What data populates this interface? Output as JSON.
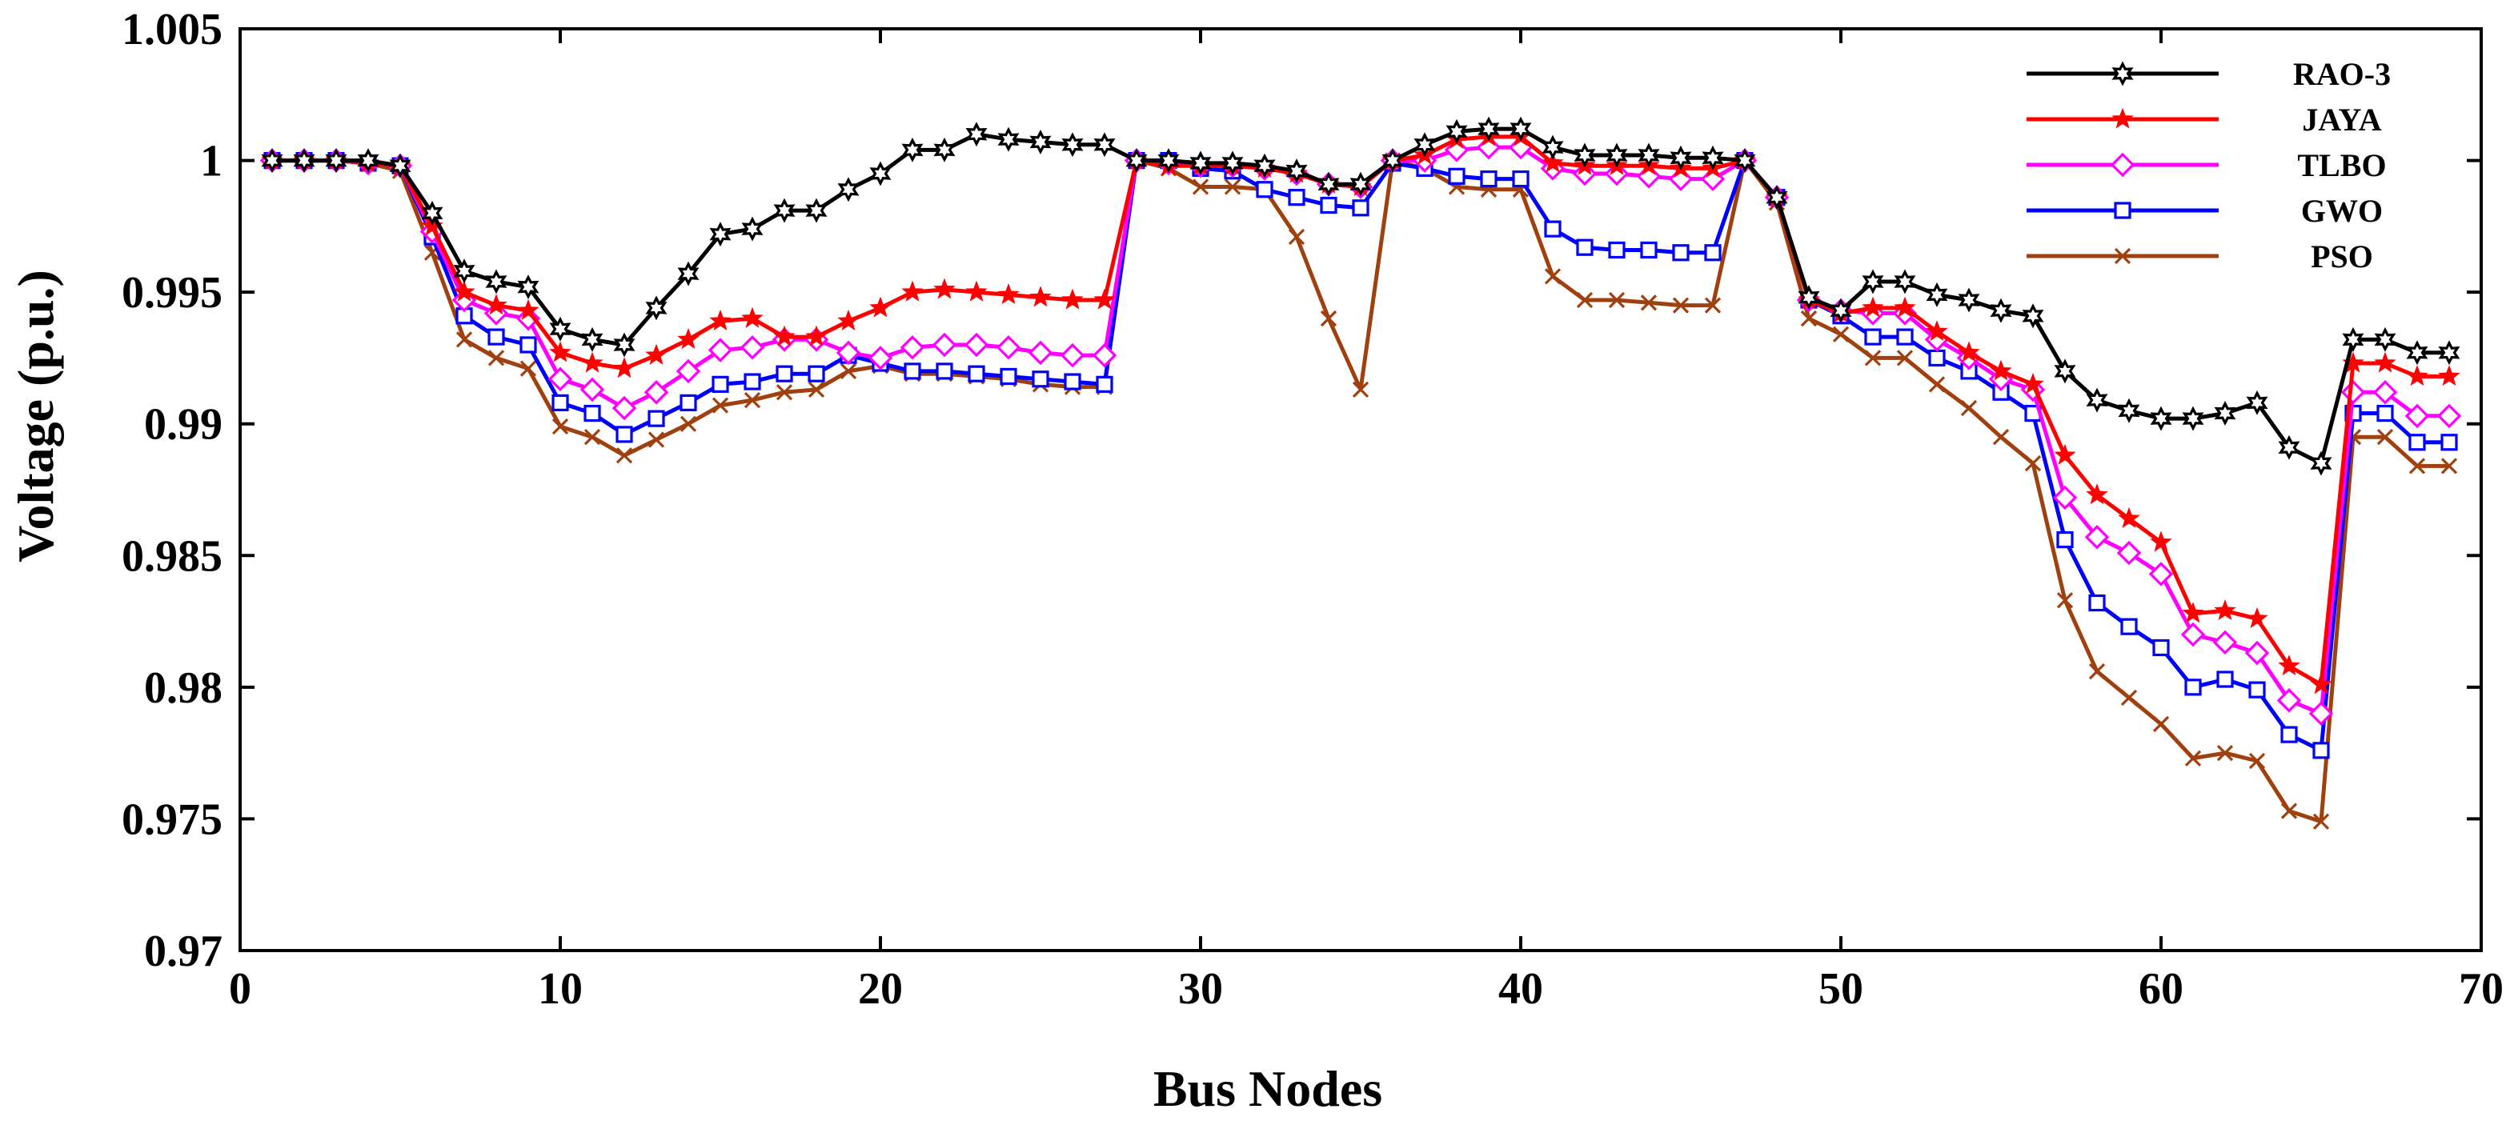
{
  "chart_data": {
    "type": "line",
    "title": "",
    "xlabel": "Bus Nodes",
    "ylabel": "Voltage (p.u.)",
    "xlim": [
      0,
      70
    ],
    "ylim": [
      0.97,
      1.005
    ],
    "xticks": [
      0,
      10,
      20,
      30,
      40,
      50,
      60,
      70
    ],
    "xtick_labels": [
      "0",
      "10",
      "20",
      "30",
      "40",
      "50",
      "60",
      "70"
    ],
    "yticks": [
      0.97,
      0.975,
      0.98,
      0.985,
      0.99,
      0.995,
      1,
      1.005
    ],
    "ytick_labels": [
      "0.97",
      "0.975",
      "0.98",
      "0.985",
      "0.99",
      "0.995",
      "1",
      "1.005"
    ],
    "grid": false,
    "legend_position": "top-right",
    "x": [
      1,
      2,
      3,
      4,
      5,
      6,
      7,
      8,
      9,
      10,
      11,
      12,
      13,
      14,
      15,
      16,
      17,
      18,
      19,
      20,
      21,
      22,
      23,
      24,
      25,
      26,
      27,
      28,
      29,
      30,
      31,
      32,
      33,
      34,
      35,
      36,
      37,
      38,
      39,
      40,
      41,
      42,
      43,
      44,
      45,
      46,
      47,
      48,
      49,
      50,
      51,
      52,
      53,
      54,
      55,
      56,
      57,
      58,
      59,
      60,
      61,
      62,
      63,
      64,
      65,
      66,
      67,
      68,
      69
    ],
    "series": [
      {
        "name": "RAO-3",
        "color": "#000000",
        "marker": "hexagram",
        "values": [
          1,
          1,
          1,
          1,
          0.9998,
          0.998,
          0.9958,
          0.9954,
          0.9952,
          0.9936,
          0.9932,
          0.993,
          0.9944,
          0.9957,
          0.9972,
          0.9974,
          0.9981,
          0.9981,
          0.9989,
          0.9995,
          1.0004,
          1.0004,
          1.001,
          1.0008,
          1.0007,
          1.0006,
          1.0006,
          1,
          1,
          0.9999,
          0.9999,
          0.9998,
          0.9996,
          0.9991,
          0.9991,
          1,
          1.0006,
          1.0011,
          1.0012,
          1.0012,
          1.0005,
          1.0002,
          1.0002,
          1.0002,
          1.0001,
          1.0001,
          1,
          0.9986,
          0.9948,
          0.9943,
          0.9954,
          0.9954,
          0.9949,
          0.9947,
          0.9943,
          0.9941,
          0.992,
          0.9909,
          0.9905,
          0.9902,
          0.9902,
          0.9904,
          0.9908,
          0.9891,
          0.9885,
          0.9932,
          0.9932,
          0.9927,
          0.9927
        ]
      },
      {
        "name": "JAYA",
        "color": "#ff0000",
        "marker": "star",
        "values": [
          1,
          1,
          1,
          0.9999,
          0.9998,
          0.9975,
          0.995,
          0.9945,
          0.9943,
          0.9927,
          0.9923,
          0.9921,
          0.9926,
          0.9932,
          0.9939,
          0.994,
          0.9933,
          0.9933,
          0.9939,
          0.9944,
          0.995,
          0.9951,
          0.995,
          0.9949,
          0.9948,
          0.9947,
          0.9947,
          1,
          0.9998,
          0.9998,
          0.9998,
          0.9997,
          0.9995,
          0.9991,
          0.999,
          1,
          1.0002,
          1.0008,
          1.0009,
          1.0009,
          0.9999,
          0.9998,
          0.9998,
          0.9998,
          0.9997,
          0.9997,
          1,
          0.9986,
          0.9947,
          0.9942,
          0.9944,
          0.9944,
          0.9935,
          0.9927,
          0.992,
          0.9915,
          0.9888,
          0.9873,
          0.9864,
          0.9855,
          0.9828,
          0.9829,
          0.9826,
          0.9808,
          0.9801,
          0.9923,
          0.9923,
          0.9918,
          0.9918
        ]
      },
      {
        "name": "TLBO",
        "color": "#ff00ff",
        "marker": "diamond",
        "values": [
          1,
          1,
          1,
          0.9999,
          0.9998,
          0.9973,
          0.9947,
          0.9942,
          0.994,
          0.9917,
          0.9913,
          0.9906,
          0.9912,
          0.992,
          0.9928,
          0.9929,
          0.9932,
          0.9932,
          0.9927,
          0.9925,
          0.9929,
          0.993,
          0.993,
          0.9929,
          0.9927,
          0.9926,
          0.9926,
          1,
          0.9999,
          0.9998,
          0.9998,
          0.9997,
          0.9995,
          0.9991,
          0.999,
          1,
          1,
          1.0004,
          1.0005,
          1.0005,
          0.9997,
          0.9995,
          0.9995,
          0.9994,
          0.9993,
          0.9993,
          1,
          0.9986,
          0.9947,
          0.9943,
          0.9942,
          0.9942,
          0.9932,
          0.9925,
          0.9917,
          0.9913,
          0.9872,
          0.9857,
          0.9851,
          0.9843,
          0.982,
          0.9817,
          0.9813,
          0.9795,
          0.979,
          0.9912,
          0.9912,
          0.9903,
          0.9903
        ]
      },
      {
        "name": "GWO",
        "color": "#0000ff",
        "marker": "square",
        "values": [
          1,
          1,
          1,
          0.9999,
          0.9998,
          0.9971,
          0.9941,
          0.9933,
          0.993,
          0.9908,
          0.9904,
          0.9896,
          0.9902,
          0.9908,
          0.9915,
          0.9916,
          0.9919,
          0.9919,
          0.9926,
          0.9923,
          0.992,
          0.992,
          0.9919,
          0.9918,
          0.9917,
          0.9916,
          0.9915,
          1,
          1,
          0.9997,
          0.9996,
          0.9989,
          0.9986,
          0.9983,
          0.9982,
          0.9999,
          0.9997,
          0.9994,
          0.9993,
          0.9993,
          0.9974,
          0.9967,
          0.9966,
          0.9966,
          0.9965,
          0.9965,
          1,
          0.9986,
          0.9947,
          0.9941,
          0.9933,
          0.9933,
          0.9925,
          0.992,
          0.9912,
          0.9904,
          0.9856,
          0.9832,
          0.9823,
          0.9815,
          0.98,
          0.9803,
          0.9799,
          0.9782,
          0.9776,
          0.9904,
          0.9904,
          0.9893,
          0.9893
        ]
      },
      {
        "name": "PSO",
        "color": "#a0400f",
        "marker": "x",
        "values": [
          1,
          1,
          1,
          0.9999,
          0.9996,
          0.9965,
          0.9932,
          0.9925,
          0.9921,
          0.9899,
          0.9895,
          0.9888,
          0.9894,
          0.99,
          0.9907,
          0.9909,
          0.9912,
          0.9913,
          0.992,
          0.9922,
          0.9919,
          0.9919,
          0.9918,
          0.9917,
          0.9915,
          0.9914,
          0.9914,
          1,
          0.9997,
          0.999,
          0.999,
          0.9989,
          0.9971,
          0.994,
          0.9913,
          1,
          0.9997,
          0.999,
          0.9989,
          0.9989,
          0.9956,
          0.9947,
          0.9947,
          0.9946,
          0.9945,
          0.9945,
          1,
          0.9984,
          0.994,
          0.9934,
          0.9925,
          0.9925,
          0.9915,
          0.9906,
          0.9895,
          0.9885,
          0.9833,
          0.9806,
          0.9796,
          0.9786,
          0.9773,
          0.9775,
          0.9772,
          0.9753,
          0.9749,
          0.9895,
          0.9895,
          0.9884,
          0.9884
        ]
      }
    ]
  }
}
